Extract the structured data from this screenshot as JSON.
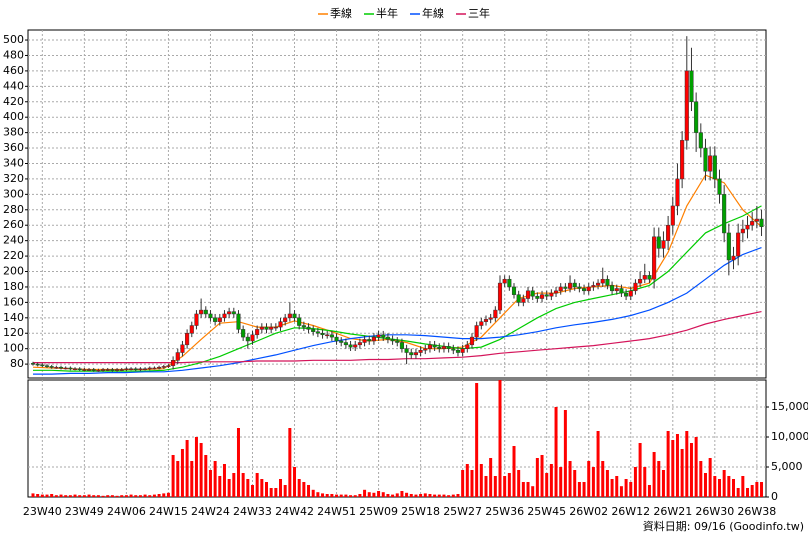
{
  "chart_data": {
    "type": "candlestick",
    "categories": [
      null,
      null,
      "23W40",
      null,
      null,
      null,
      null,
      null,
      null,
      null,
      null,
      "23W49",
      null,
      null,
      null,
      null,
      null,
      null,
      null,
      null,
      "24W06",
      null,
      null,
      null,
      null,
      null,
      null,
      null,
      null,
      "24W15",
      null,
      null,
      null,
      null,
      null,
      null,
      null,
      null,
      "24W24",
      null,
      null,
      null,
      null,
      null,
      null,
      null,
      null,
      "24W33",
      null,
      null,
      null,
      null,
      null,
      null,
      null,
      null,
      "24W42",
      null,
      null,
      null,
      null,
      null,
      null,
      null,
      null,
      "24W51",
      null,
      null,
      null,
      null,
      null,
      null,
      null,
      null,
      "25W09",
      null,
      null,
      null,
      null,
      null,
      null,
      null,
      null,
      "25W18",
      null,
      null,
      null,
      null,
      null,
      null,
      null,
      null,
      "25W27",
      null,
      null,
      null,
      null,
      null,
      null,
      null,
      null,
      "25W36",
      null,
      null,
      null,
      null,
      null,
      null,
      null,
      null,
      "25W45",
      null,
      null,
      null,
      null,
      null,
      null,
      null,
      null,
      "26W02",
      null,
      null,
      null,
      null,
      null,
      null,
      null,
      null,
      "26W12",
      null,
      null,
      null,
      null,
      null,
      null,
      null,
      null,
      "26W21",
      null,
      null,
      null,
      null,
      null,
      null,
      null,
      null,
      "26W30",
      null,
      null,
      null,
      null,
      null,
      null,
      null,
      null,
      "26W38",
      null
    ],
    "open": [
      81,
      80,
      79,
      78,
      77,
      76,
      76,
      75,
      75,
      74,
      74,
      73,
      73,
      73,
      72,
      72,
      73,
      73,
      72,
      73,
      73,
      74,
      74,
      73,
      74,
      74,
      75,
      75,
      76,
      77,
      78,
      85,
      95,
      105,
      120,
      130,
      145,
      150,
      145,
      140,
      135,
      140,
      145,
      148,
      145,
      125,
      115,
      110,
      118,
      125,
      128,
      125,
      128,
      128,
      135,
      140,
      145,
      140,
      130,
      128,
      125,
      122,
      120,
      118,
      118,
      115,
      110,
      108,
      105,
      102,
      105,
      108,
      112,
      110,
      115,
      118,
      115,
      112,
      110,
      108,
      100,
      95,
      92,
      95,
      98,
      100,
      105,
      102,
      100,
      103,
      100,
      98,
      95,
      100,
      105,
      115,
      130,
      135,
      138,
      140,
      150,
      185,
      190,
      180,
      170,
      160,
      165,
      175,
      168,
      165,
      170,
      168,
      172,
      175,
      180,
      178,
      185,
      180,
      178,
      175,
      180,
      182,
      185,
      190,
      182,
      175,
      178,
      172,
      168,
      175,
      185,
      190,
      195,
      190,
      245,
      230,
      240,
      260,
      285,
      320,
      370,
      460,
      420,
      380,
      360,
      330,
      350,
      320,
      300,
      250,
      215,
      220,
      250,
      255,
      260,
      265,
      268
    ],
    "high": [
      83,
      82,
      81,
      80,
      79,
      78,
      78,
      77,
      77,
      76,
      76,
      75,
      75,
      75,
      74,
      75,
      75,
      75,
      75,
      75,
      76,
      76,
      76,
      76,
      76,
      77,
      77,
      78,
      79,
      80,
      90,
      100,
      110,
      125,
      135,
      150,
      165,
      155,
      150,
      145,
      145,
      150,
      153,
      153,
      150,
      130,
      120,
      123,
      130,
      133,
      133,
      133,
      133,
      140,
      145,
      160,
      150,
      145,
      135,
      133,
      130,
      127,
      125,
      123,
      123,
      120,
      115,
      113,
      110,
      110,
      113,
      117,
      117,
      120,
      123,
      123,
      120,
      117,
      115,
      113,
      105,
      100,
      100,
      103,
      105,
      110,
      110,
      107,
      108,
      108,
      105,
      103,
      105,
      110,
      120,
      135,
      140,
      143,
      145,
      155,
      195,
      195,
      195,
      185,
      175,
      170,
      180,
      180,
      173,
      175,
      175,
      177,
      180,
      185,
      185,
      195,
      190,
      185,
      183,
      185,
      187,
      190,
      205,
      195,
      187,
      183,
      183,
      177,
      180,
      190,
      200,
      210,
      200,
      257,
      257,
      252,
      272,
      297,
      340,
      382,
      505,
      490,
      432,
      392,
      372,
      362,
      362,
      332,
      312,
      262,
      232,
      262,
      267,
      272,
      277,
      285,
      280
    ],
    "low": [
      78,
      77,
      76,
      75,
      74,
      74,
      73,
      73,
      72,
      72,
      71,
      71,
      71,
      70,
      70,
      70,
      71,
      70,
      70,
      71,
      71,
      72,
      71,
      71,
      72,
      72,
      73,
      73,
      74,
      75,
      73,
      80,
      90,
      100,
      115,
      125,
      140,
      140,
      135,
      130,
      130,
      135,
      140,
      140,
      120,
      110,
      100,
      105,
      113,
      120,
      120,
      120,
      123,
      123,
      130,
      135,
      135,
      125,
      123,
      120,
      117,
      115,
      113,
      113,
      110,
      105,
      103,
      100,
      97,
      97,
      100,
      103,
      105,
      105,
      110,
      110,
      107,
      105,
      103,
      95,
      80,
      87,
      87,
      90,
      93,
      95,
      97,
      95,
      95,
      95,
      93,
      90,
      90,
      95,
      100,
      110,
      125,
      130,
      133,
      135,
      145,
      180,
      175,
      165,
      155,
      155,
      160,
      163,
      160,
      160,
      163,
      163,
      167,
      170,
      173,
      173,
      175,
      173,
      170,
      170,
      175,
      177,
      180,
      177,
      170,
      170,
      167,
      163,
      163,
      170,
      180,
      185,
      185,
      178,
      218,
      218,
      228,
      248,
      273,
      308,
      358,
      408,
      355,
      348,
      318,
      318,
      308,
      288,
      238,
      195,
      203,
      208,
      238,
      243,
      253,
      256,
      246
    ],
    "close": [
      80,
      79,
      78,
      77,
      76,
      76,
      75,
      75,
      74,
      74,
      73,
      73,
      73,
      72,
      72,
      73,
      73,
      72,
      73,
      73,
      74,
      74,
      73,
      74,
      74,
      75,
      75,
      76,
      77,
      78,
      85,
      95,
      105,
      120,
      130,
      145,
      150,
      145,
      140,
      135,
      140,
      145,
      148,
      145,
      125,
      115,
      110,
      118,
      125,
      128,
      125,
      128,
      128,
      135,
      140,
      145,
      140,
      130,
      128,
      125,
      122,
      120,
      118,
      118,
      115,
      110,
      108,
      105,
      102,
      105,
      108,
      112,
      110,
      115,
      118,
      115,
      112,
      110,
      108,
      100,
      95,
      92,
      95,
      98,
      100,
      105,
      102,
      100,
      103,
      100,
      98,
      95,
      100,
      105,
      115,
      130,
      135,
      138,
      140,
      150,
      185,
      190,
      180,
      170,
      160,
      165,
      175,
      168,
      165,
      170,
      168,
      172,
      175,
      180,
      178,
      185,
      180,
      178,
      175,
      180,
      182,
      185,
      190,
      182,
      175,
      178,
      172,
      168,
      175,
      185,
      190,
      195,
      190,
      245,
      230,
      240,
      260,
      285,
      320,
      370,
      460,
      420,
      380,
      360,
      330,
      350,
      320,
      300,
      250,
      215,
      220,
      250,
      255,
      260,
      265,
      268,
      258
    ],
    "up_color": "#ff0000",
    "down_color": "#00a000",
    "ylim": [
      62,
      513
    ],
    "yticks": [
      80,
      100,
      120,
      140,
      160,
      180,
      200,
      220,
      240,
      260,
      280,
      300,
      320,
      340,
      360,
      380,
      400,
      420,
      440,
      460,
      480,
      500
    ],
    "grid": true,
    "volume": {
      "color": "#ff0000",
      "ylim": [
        0,
        19500
      ],
      "yticks": [
        0,
        {
          "value": 5000,
          "label": "5,000"
        },
        {
          "value": 10000,
          "label": "10,000"
        },
        {
          "value": 15000,
          "label": "15,000"
        }
      ],
      "values": [
        600,
        500,
        400,
        400,
        500,
        300,
        400,
        300,
        300,
        400,
        300,
        300,
        400,
        300,
        300,
        200,
        300,
        300,
        200,
        300,
        300,
        400,
        300,
        300,
        400,
        300,
        400,
        500,
        600,
        700,
        7000,
        6000,
        8000,
        9500,
        6000,
        10000,
        9000,
        7000,
        4500,
        6000,
        3500,
        5500,
        3000,
        4000,
        11500,
        4000,
        3000,
        2000,
        4000,
        3000,
        2500,
        1500,
        1500,
        3000,
        2000,
        11500,
        5000,
        3000,
        2500,
        2000,
        1200,
        800,
        600,
        500,
        500,
        400,
        400,
        400,
        300,
        300,
        500,
        1200,
        800,
        700,
        1000,
        800,
        500,
        400,
        600,
        1000,
        700,
        500,
        400,
        500,
        600,
        500,
        400,
        400,
        400,
        300,
        400,
        500,
        4500,
        5500,
        4500,
        19000,
        5500,
        3500,
        6500,
        3500,
        19500,
        3500,
        4000,
        8500,
        4500,
        2500,
        2500,
        1800,
        6500,
        7000,
        4000,
        5500,
        15000,
        5000,
        14500,
        6000,
        4500,
        2500,
        2500,
        6000,
        5000,
        11000,
        6000,
        4500,
        3000,
        3500,
        1800,
        3000,
        2500,
        5000,
        9000,
        5000,
        2000,
        7500,
        6000,
        4500,
        11000,
        9500,
        10500,
        8000,
        11000,
        9000,
        10000,
        6000,
        4000,
        6500,
        3500,
        3000,
        4500,
        3500,
        3000,
        1500,
        3500,
        1500,
        2000,
        2500,
        2500
      ]
    },
    "ma": {
      "x": [
        0,
        4,
        8,
        12,
        16,
        20,
        24,
        28,
        32,
        36,
        40,
        44,
        48,
        52,
        56,
        60,
        64,
        68,
        72,
        76,
        80,
        84,
        88,
        92,
        96,
        100,
        104,
        108,
        112,
        116,
        120,
        124,
        128,
        132,
        136,
        140,
        144,
        148,
        152,
        156
      ],
      "series": [
        {
          "name": "季線",
          "color": "#ff8000",
          "values": [
            76,
            75,
            74,
            73,
            73,
            73,
            73,
            74,
            90,
            112,
            133,
            135,
            128,
            128,
            136,
            130,
            122,
            113,
            110,
            112,
            108,
            100,
            100,
            102,
            115,
            140,
            165,
            172,
            172,
            178,
            180,
            182,
            178,
            185,
            225,
            285,
            325,
            315,
            280,
            258
          ]
        },
        {
          "name": "半年",
          "color": "#00cc00",
          "values": [
            72,
            72,
            71,
            71,
            71,
            71,
            71,
            72,
            76,
            82,
            90,
            100,
            110,
            120,
            127,
            126,
            123,
            119,
            116,
            113,
            110,
            106,
            103,
            100,
            102,
            112,
            126,
            140,
            152,
            160,
            165,
            170,
            175,
            182,
            200,
            225,
            250,
            262,
            272,
            285
          ]
        },
        {
          "name": "年線",
          "color": "#0050ff",
          "values": [
            67,
            67,
            68,
            68,
            69,
            69,
            70,
            70,
            72,
            75,
            78,
            82,
            87,
            92,
            98,
            104,
            109,
            113,
            116,
            118,
            118,
            117,
            115,
            113,
            113,
            115,
            118,
            122,
            127,
            131,
            134,
            138,
            143,
            150,
            160,
            172,
            190,
            208,
            222,
            231
          ]
        },
        {
          "name": "三年",
          "color": "#d4145a",
          "values": [
            82,
            82,
            82,
            82,
            82,
            82,
            82,
            82,
            82,
            83,
            83,
            83,
            84,
            84,
            84,
            85,
            85,
            85,
            86,
            86,
            87,
            87,
            88,
            89,
            91,
            94,
            96,
            98,
            100,
            102,
            104,
            107,
            110,
            113,
            118,
            124,
            132,
            138,
            143,
            148
          ]
        }
      ]
    },
    "footer": "資料日期: 09/16  (Goodinfo.tw)"
  }
}
